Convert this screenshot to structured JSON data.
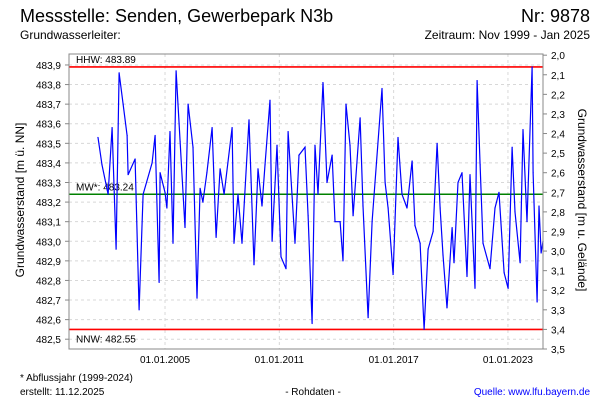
{
  "header": {
    "title": "Messstelle: Senden, Gewerbepark N3b",
    "number": "Nr: 9878",
    "aquifer": "Grundwasserleiter:",
    "period": "Zeitraum: Nov 1999 - Jan 2025"
  },
  "footer": {
    "note": "* Abflussjahr (1999-2024)",
    "created": "erstellt:  11.12.2025",
    "rawdata": "- Rohdaten -",
    "source": "Quelle: www.lfu.bayern.de"
  },
  "colors": {
    "series": "#0000ff",
    "hhw": "#ff0000",
    "nnw": "#ff0000",
    "mw": "#008000",
    "grid": "#d8d8d8",
    "source": "#0000ff"
  },
  "chart_data": {
    "type": "line",
    "ylabel": "Grundwasserstand [m ü. NN]",
    "y2label": "Grundwasserstand [m u. Gelände]",
    "xlim": [
      1999.96,
      2024.84
    ],
    "ylim": [
      482.45,
      483.956
    ],
    "y2_offset": 485.95,
    "grid": true,
    "x_ticks": [
      {
        "value": 2005,
        "label": "01.01.2005"
      },
      {
        "value": 2011,
        "label": "01.01.2011"
      },
      {
        "value": 2017,
        "label": "01.01.2017"
      },
      {
        "value": 2023,
        "label": "01.01.2023"
      }
    ],
    "y_ticks": [
      "483,9",
      "483,8",
      "483,7",
      "483,6",
      "483,5",
      "483,4",
      "483,3",
      "483,2",
      "483,1",
      "483,0",
      "482,9",
      "482,8",
      "482,7",
      "482,6",
      "482,5"
    ],
    "y_tick_values": [
      483.9,
      483.8,
      483.7,
      483.6,
      483.5,
      483.4,
      483.3,
      483.2,
      483.1,
      483.0,
      482.9,
      482.8,
      482.7,
      482.6,
      482.5
    ],
    "y2_ticks": [
      "2,0",
      "2,1",
      "2,2",
      "2,3",
      "2,4",
      "2,5",
      "2,6",
      "2,7",
      "2,8",
      "2,9",
      "3,0",
      "3,1",
      "3,2",
      "3,3",
      "3,4",
      "3,5"
    ],
    "y2_tick_values": [
      2.0,
      2.1,
      2.2,
      2.3,
      2.4,
      2.5,
      2.6,
      2.7,
      2.8,
      2.9,
      3.0,
      3.1,
      3.2,
      3.3,
      3.4,
      3.5
    ],
    "reference_lines": [
      {
        "name": "HHW",
        "label": "HHW: 483.89",
        "value": 483.89,
        "color": "#ff0000"
      },
      {
        "name": "MW",
        "label": "MW*: 483.24",
        "value": 483.24,
        "color": "#008000"
      },
      {
        "name": "NNW",
        "label": "NNW: 482.55",
        "value": 482.55,
        "color": "#ff0000"
      }
    ],
    "series": [
      {
        "name": "Grundwasserstand",
        "points": [
          [
            2001.48,
            483.53
          ],
          [
            2001.69,
            483.39
          ],
          [
            2002.01,
            483.24
          ],
          [
            2002.22,
            483.58
          ],
          [
            2002.43,
            482.96
          ],
          [
            2002.59,
            483.86
          ],
          [
            2002.8,
            483.7
          ],
          [
            2003.01,
            483.54
          ],
          [
            2003.06,
            483.34
          ],
          [
            2003.43,
            483.42
          ],
          [
            2003.64,
            482.65
          ],
          [
            2003.85,
            483.24
          ],
          [
            2004.32,
            483.4
          ],
          [
            2004.48,
            483.54
          ],
          [
            2004.69,
            482.79
          ],
          [
            2004.74,
            483.35
          ],
          [
            2005.0,
            483.25
          ],
          [
            2005.1,
            483.17
          ],
          [
            2005.26,
            483.56
          ],
          [
            2005.42,
            482.99
          ],
          [
            2005.58,
            483.87
          ],
          [
            2005.79,
            483.51
          ],
          [
            2006.05,
            483.07
          ],
          [
            2006.21,
            483.7
          ],
          [
            2006.47,
            483.48
          ],
          [
            2006.68,
            482.71
          ],
          [
            2006.84,
            483.27
          ],
          [
            2006.99,
            483.2
          ],
          [
            2007.2,
            483.35
          ],
          [
            2007.47,
            483.58
          ],
          [
            2007.68,
            483.02
          ],
          [
            2007.89,
            483.37
          ],
          [
            2008.1,
            483.24
          ],
          [
            2008.52,
            483.58
          ],
          [
            2008.62,
            482.99
          ],
          [
            2008.83,
            483.24
          ],
          [
            2009.04,
            482.99
          ],
          [
            2009.41,
            483.62
          ],
          [
            2009.67,
            482.88
          ],
          [
            2009.88,
            483.37
          ],
          [
            2010.09,
            483.18
          ],
          [
            2010.25,
            483.39
          ],
          [
            2010.51,
            483.72
          ],
          [
            2010.62,
            483.0
          ],
          [
            2010.88,
            483.49
          ],
          [
            2011.09,
            482.92
          ],
          [
            2011.35,
            482.86
          ],
          [
            2011.46,
            483.56
          ],
          [
            2011.82,
            482.99
          ],
          [
            2012.03,
            483.44
          ],
          [
            2012.35,
            483.48
          ],
          [
            2012.51,
            483.13
          ],
          [
            2012.72,
            482.58
          ],
          [
            2012.87,
            483.49
          ],
          [
            2013.03,
            483.24
          ],
          [
            2013.29,
            483.81
          ],
          [
            2013.5,
            483.3
          ],
          [
            2013.77,
            483.44
          ],
          [
            2013.92,
            483.1
          ],
          [
            2014.19,
            483.1
          ],
          [
            2014.34,
            482.9
          ],
          [
            2014.5,
            483.7
          ],
          [
            2014.71,
            483.49
          ],
          [
            2014.87,
            483.13
          ],
          [
            2015.24,
            483.63
          ],
          [
            2015.39,
            483.18
          ],
          [
            2015.66,
            482.61
          ],
          [
            2015.87,
            483.1
          ],
          [
            2016.02,
            483.3
          ],
          [
            2016.39,
            483.78
          ],
          [
            2016.55,
            483.3
          ],
          [
            2016.71,
            483.17
          ],
          [
            2016.97,
            482.83
          ],
          [
            2017.23,
            483.53
          ],
          [
            2017.44,
            483.24
          ],
          [
            2017.7,
            483.17
          ],
          [
            2017.97,
            483.41
          ],
          [
            2018.12,
            483.08
          ],
          [
            2018.39,
            482.99
          ],
          [
            2018.6,
            482.55
          ],
          [
            2018.81,
            482.96
          ],
          [
            2019.07,
            483.05
          ],
          [
            2019.28,
            483.5
          ],
          [
            2019.44,
            483.17
          ],
          [
            2019.59,
            482.93
          ],
          [
            2019.8,
            482.66
          ],
          [
            2020.07,
            483.07
          ],
          [
            2020.17,
            482.89
          ],
          [
            2020.38,
            483.3
          ],
          [
            2020.59,
            483.35
          ],
          [
            2020.85,
            482.82
          ],
          [
            2021.01,
            483.34
          ],
          [
            2021.27,
            482.76
          ],
          [
            2021.38,
            483.82
          ],
          [
            2021.54,
            483.39
          ],
          [
            2021.69,
            482.99
          ],
          [
            2022.06,
            482.86
          ],
          [
            2022.32,
            483.17
          ],
          [
            2022.53,
            483.25
          ],
          [
            2022.8,
            482.84
          ],
          [
            2023.01,
            482.76
          ],
          [
            2023.22,
            483.48
          ],
          [
            2023.37,
            483.15
          ],
          [
            2023.64,
            482.89
          ],
          [
            2023.79,
            483.57
          ],
          [
            2024.0,
            483.1
          ],
          [
            2024.27,
            483.89
          ],
          [
            2024.32,
            483.35
          ],
          [
            2024.53,
            482.69
          ],
          [
            2024.63,
            483.18
          ],
          [
            2024.74,
            482.94
          ],
          [
            2024.84,
            483.0
          ]
        ]
      }
    ]
  }
}
